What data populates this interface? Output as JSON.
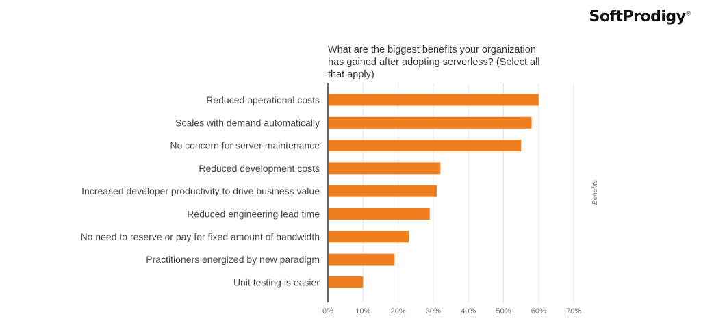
{
  "brand": {
    "name": "SoftProdigy",
    "mark": "®"
  },
  "chart_data": {
    "type": "bar",
    "orientation": "horizontal",
    "title": "What are the biggest benefits your organization has gained after adopting serverless? (Select all that apply)",
    "categories": [
      "Reduced operational costs",
      "Scales with demand automatically",
      "No concern for server maintenance",
      "Reduced development costs",
      "Increased developer productivity to drive business value",
      "Reduced engineering lead time",
      "No need to reserve or pay for fixed amount of bandwidth",
      "Practitioners energized by new paradigm",
      "Unit testing is easier"
    ],
    "series": [
      {
        "name": "Benefits",
        "values": [
          60,
          58,
          55,
          32,
          31,
          29,
          23,
          19,
          10
        ]
      }
    ],
    "xlim": [
      0,
      70
    ],
    "ticks": [
      "0%",
      "10%",
      "20%",
      "30%",
      "40%",
      "50%",
      "60%",
      "70%"
    ],
    "grid": true,
    "legend": "right",
    "color": "#f07d1e"
  }
}
